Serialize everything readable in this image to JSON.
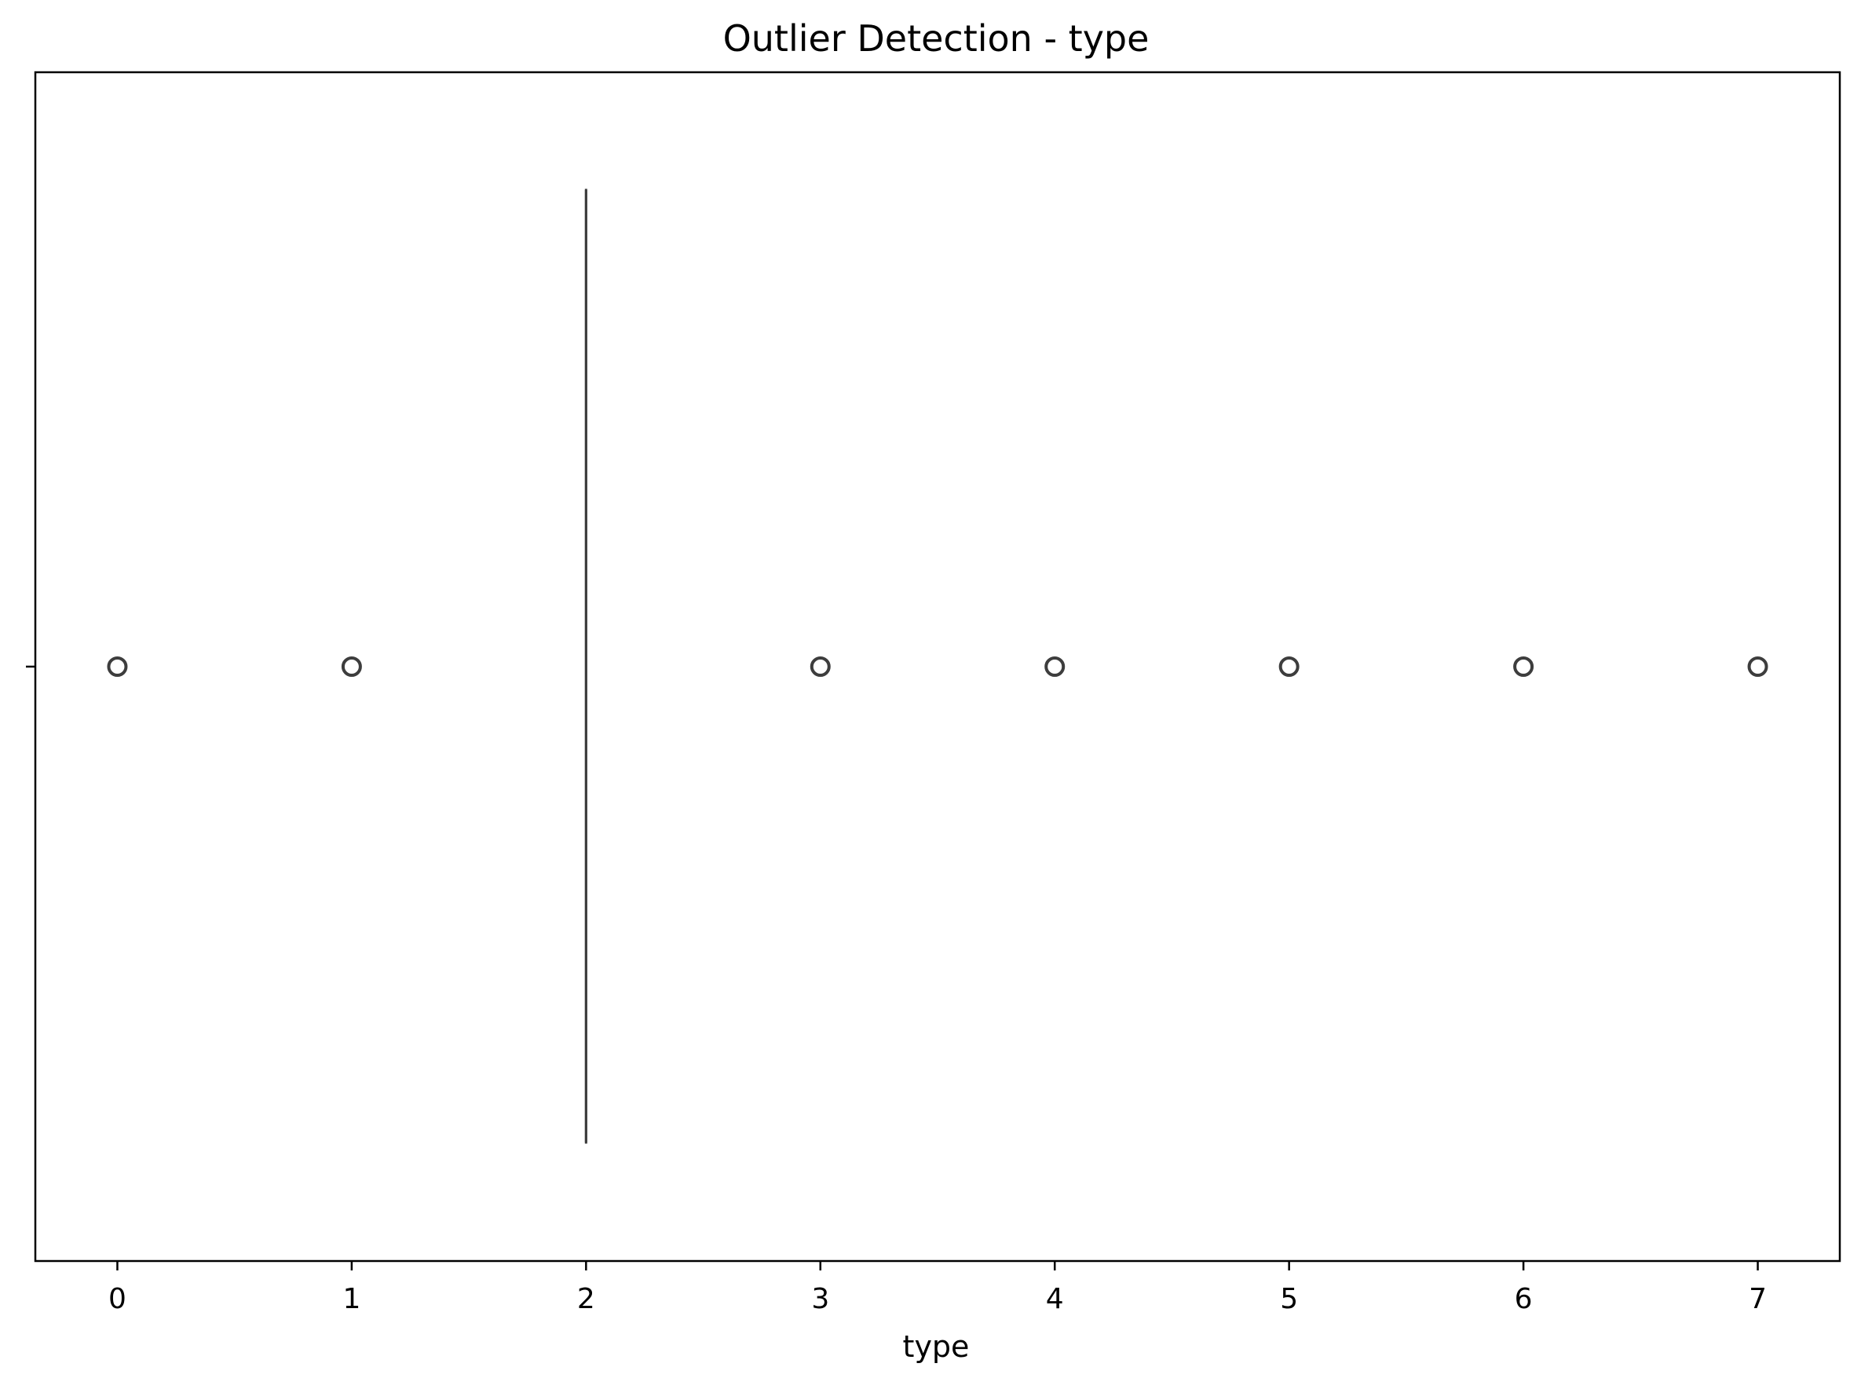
{
  "chart_data": {
    "type": "box",
    "title": "Outlier Detection - type",
    "xlabel": "type",
    "ylabel": "",
    "xlim": [
      -0.35,
      7.35
    ],
    "xticks": [
      0,
      1,
      2,
      3,
      4,
      5,
      6,
      7
    ],
    "grid": false,
    "box": {
      "q1": 2,
      "median": 2,
      "q3": 2,
      "whisker_low": 2,
      "whisker_high": 2
    },
    "outliers": [
      0,
      1,
      3,
      4,
      5,
      6,
      7
    ],
    "colors": {
      "box_line": "#3d3d3d",
      "outlier_edge": "#3d3d3d",
      "axes": "#000000"
    }
  }
}
